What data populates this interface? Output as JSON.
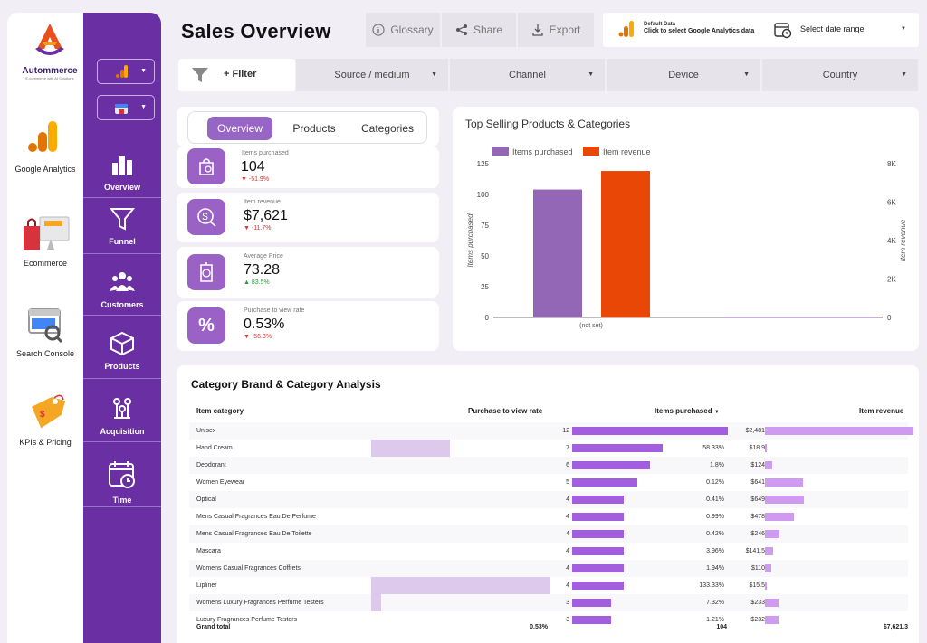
{
  "brand": {
    "name": "Autommerce",
    "tagline": "E-commerce with AI Solutions"
  },
  "apps": [
    {
      "label": "Google Analytics",
      "icon": "google-analytics-icon"
    },
    {
      "label": "Ecommerce",
      "icon": "shopping-bag-icon"
    },
    {
      "label": "Search Console",
      "icon": "search-console-icon"
    },
    {
      "label": "KPIs & Pricing",
      "icon": "price-tag-icon"
    }
  ],
  "nav": [
    {
      "label": "Overview",
      "icon": "bar-chart-icon"
    },
    {
      "label": "Funnel",
      "icon": "funnel-icon"
    },
    {
      "label": "Customers",
      "icon": "users-icon"
    },
    {
      "label": "Products",
      "icon": "box-icon"
    },
    {
      "label": "Acquisition",
      "icon": "acquisition-icon"
    },
    {
      "label": "Time",
      "icon": "calendar-clock-icon"
    }
  ],
  "header": {
    "title": "Sales Overview",
    "glossary": "Glossary",
    "share": "Share",
    "export": "Export",
    "ga_title": "Default Data",
    "ga_subtitle": "Click to select Google Analytics data",
    "date_label": "Select date range"
  },
  "filters": {
    "add": "+ Filter",
    "source": "Source / medium",
    "channel": "Channel",
    "device": "Device",
    "country": "Country"
  },
  "tabs": [
    "Overview",
    "Products",
    "Categories"
  ],
  "kpis": [
    {
      "label": "Items purchased",
      "value": "104",
      "delta": "-51.9%",
      "dir": "down"
    },
    {
      "label": "Item revenue",
      "value": "$7,621",
      "delta": "-11.7%",
      "dir": "down"
    },
    {
      "label": "Average Price",
      "value": "73.28",
      "delta": "83.5%",
      "dir": "up"
    },
    {
      "label": "Purchase to view rate",
      "value": "0.53%",
      "delta": "-56.3%",
      "dir": "down"
    }
  ],
  "chart_data": {
    "type": "bar",
    "title": "Top Selling Products & Categories",
    "categories": [
      "(not set)"
    ],
    "series": [
      {
        "name": "Items purchased",
        "axis": "left",
        "color": "#9466b6",
        "values": [
          104
        ]
      },
      {
        "name": "Item revenue",
        "axis": "right",
        "color": "#e84706",
        "values": [
          7621
        ]
      }
    ],
    "ylabel": "Items purchased",
    "y2label": "Item revenue",
    "yticks": [
      "0",
      "25",
      "50",
      "75",
      "100",
      "125"
    ],
    "y2ticks": [
      "0",
      "2K",
      "4K",
      "6K",
      "8K"
    ],
    "ylim": [
      0,
      125
    ],
    "y2lim": [
      0,
      8000
    ]
  },
  "table": {
    "title": "Category Brand & Category Analysis",
    "headers": {
      "category": "Item category",
      "rate": "Purchase to view rate",
      "items": "Items purchased",
      "revenue": "Item revenue"
    },
    "rows": [
      {
        "category": "Unisex",
        "rate": "0.3%",
        "rate_pct": 0.3,
        "items": "12",
        "items_n": 12,
        "revenue": "$2,481",
        "revenue_n": 2481
      },
      {
        "category": "Hand Cream",
        "rate": "58.33%",
        "rate_pct": 58.33,
        "items": "7",
        "items_n": 7,
        "revenue": "$18.9",
        "revenue_n": 18.9
      },
      {
        "category": "Deodorant",
        "rate": "1.8%",
        "rate_pct": 1.8,
        "items": "6",
        "items_n": 6,
        "revenue": "$124",
        "revenue_n": 124
      },
      {
        "category": "Women Eyewear",
        "rate": "0.12%",
        "rate_pct": 0.12,
        "items": "5",
        "items_n": 5,
        "revenue": "$641",
        "revenue_n": 641
      },
      {
        "category": "Optical",
        "rate": "0.41%",
        "rate_pct": 0.41,
        "items": "4",
        "items_n": 4,
        "revenue": "$649",
        "revenue_n": 649
      },
      {
        "category": "Mens Casual Fragrances Eau De Perfume",
        "rate": "0.99%",
        "rate_pct": 0.99,
        "items": "4",
        "items_n": 4,
        "revenue": "$478",
        "revenue_n": 478
      },
      {
        "category": "Mens Casual Fragrances Eau De Toilette",
        "rate": "0.42%",
        "rate_pct": 0.42,
        "items": "4",
        "items_n": 4,
        "revenue": "$246",
        "revenue_n": 246
      },
      {
        "category": "Mascara",
        "rate": "3.96%",
        "rate_pct": 3.96,
        "items": "4",
        "items_n": 4,
        "revenue": "$141.5",
        "revenue_n": 141.5
      },
      {
        "category": "Womens Casual Fragrances Coffrets",
        "rate": "1.94%",
        "rate_pct": 1.94,
        "items": "4",
        "items_n": 4,
        "revenue": "$110",
        "revenue_n": 110
      },
      {
        "category": "Lipliner",
        "rate": "133.33%",
        "rate_pct": 133.33,
        "items": "4",
        "items_n": 4,
        "revenue": "$15.5",
        "revenue_n": 15.5
      },
      {
        "category": "Womens Luxury Fragrances Perfume Testers",
        "rate": "7.32%",
        "rate_pct": 7.32,
        "items": "3",
        "items_n": 3,
        "revenue": "$233",
        "revenue_n": 233
      },
      {
        "category": "Luxury Fragrances Perfume Testers",
        "rate": "1.21%",
        "rate_pct": 1.21,
        "items": "3",
        "items_n": 3,
        "revenue": "$232",
        "revenue_n": 232
      }
    ],
    "total": {
      "label": "Grand total",
      "rate": "0.53%",
      "items": "104",
      "revenue": "$7,621.3"
    }
  }
}
